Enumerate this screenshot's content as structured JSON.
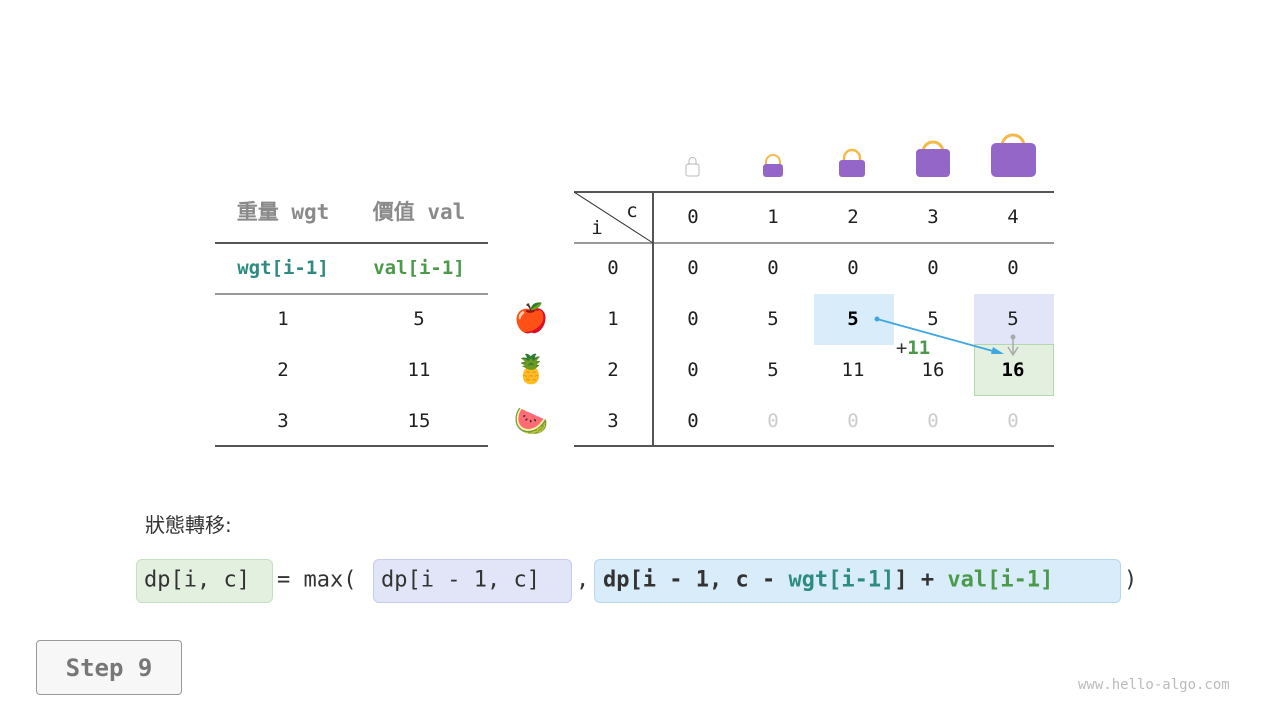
{
  "left_table": {
    "headers": [
      "重量 wgt",
      "價值 val"
    ],
    "subheaders": [
      "wgt[i-1]",
      "val[i-1]"
    ],
    "rows": [
      [
        "1",
        "5"
      ],
      [
        "2",
        "11"
      ],
      [
        "3",
        "15"
      ]
    ]
  },
  "items": [
    "apple-icon",
    "pineapple-icon",
    "watermelon-icon"
  ],
  "item_glyphs": [
    "🍎",
    "🍍",
    "🍉"
  ],
  "dp_table": {
    "corner_c": "c",
    "corner_i": "i",
    "cols": [
      "0",
      "1",
      "2",
      "3",
      "4"
    ],
    "row_labels": [
      "0",
      "1",
      "2",
      "3"
    ],
    "rows": [
      [
        "0",
        "0",
        "0",
        "0",
        "0"
      ],
      [
        "0",
        "5",
        "5",
        "5",
        "5"
      ],
      [
        "0",
        "5",
        "11",
        "16",
        "16"
      ],
      [
        "0",
        "0",
        "0",
        "0",
        "0"
      ]
    ],
    "plus_label": "+11"
  },
  "colors": {
    "teal": "#2e8b80",
    "green": "#4a9a4a",
    "blue_hl": "#d9ecfa",
    "lavender_hl": "#e2e5f8",
    "green_hl": "#e3f0e0",
    "bag": "#9366c8",
    "arrow": "#3ea6e0"
  },
  "formula": {
    "title": "狀態轉移:",
    "lhs": "dp[i, c]",
    "eq": "= max(",
    "arg1": "dp[i - 1, c]",
    "comma": ",",
    "arg2_a": "dp[i - 1, c - ",
    "arg2_wgt": "wgt[i-1]",
    "arg2_b": "] + ",
    "arg2_val": "val[i-1]",
    "close": ")"
  },
  "step_label": "Step 9",
  "watermark": "www.hello-algo.com"
}
